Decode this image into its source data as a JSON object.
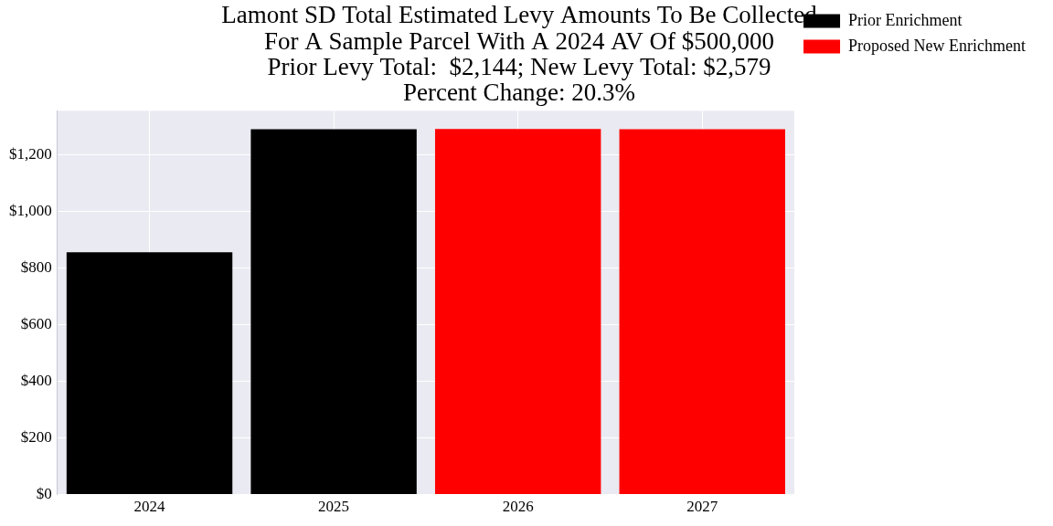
{
  "chart_data": {
    "type": "bar",
    "title": [
      "Lamont SD Total Estimated Levy Amounts To Be Collected",
      "For A Sample Parcel With A 2024 AV Of $500,000",
      "Prior Levy Total:  $2,144; New Levy Total: $2,579",
      "Percent Change: 20.3%"
    ],
    "categories": [
      "2024",
      "2025",
      "2026",
      "2027"
    ],
    "series": [
      {
        "name": "Prior Enrichment",
        "color": "#000000",
        "values": [
          855,
          1289,
          null,
          null
        ]
      },
      {
        "name": "Proposed New Enrichment",
        "color": "#ff0000",
        "values": [
          null,
          null,
          1290,
          1289
        ]
      }
    ],
    "stacked": true,
    "ylim": [
      0,
      1354
    ],
    "yticks": [
      {
        "value": 0,
        "label": "$0"
      },
      {
        "value": 200,
        "label": "$200"
      },
      {
        "value": 400,
        "label": "$400"
      },
      {
        "value": 600,
        "label": "$600"
      },
      {
        "value": 800,
        "label": "$800"
      },
      {
        "value": 1000,
        "label": "$1,000"
      },
      {
        "value": 1200,
        "label": "$1,200"
      }
    ],
    "grid": true,
    "legend": "right"
  }
}
